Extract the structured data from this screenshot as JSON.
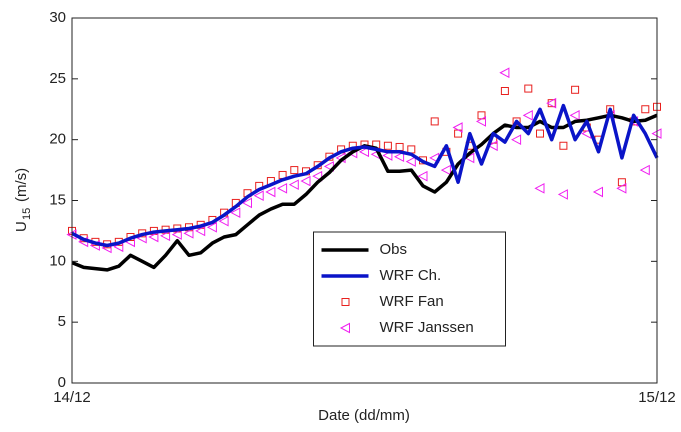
{
  "chart_data": {
    "type": "line",
    "x_label": "Date (dd/mm)",
    "y_label": "U",
    "y_label_subscript": "15",
    "y_label_unit": "(m/s)",
    "xlim": [
      0,
      1
    ],
    "xticks": [
      {
        "value": 0,
        "label": "14/12"
      },
      {
        "value": 1,
        "label": "15/12"
      }
    ],
    "ylim": [
      0,
      30
    ],
    "yticks": [
      0,
      5,
      10,
      15,
      20,
      25,
      30
    ],
    "grid": false,
    "legend_position": "lower center",
    "x": [
      0,
      0.02,
      0.04,
      0.06,
      0.08,
      0.1,
      0.12,
      0.14,
      0.16,
      0.18,
      0.2,
      0.22,
      0.24,
      0.26,
      0.28,
      0.3,
      0.32,
      0.34,
      0.36,
      0.38,
      0.4,
      0.42,
      0.44,
      0.46,
      0.48,
      0.5,
      0.52,
      0.54,
      0.56,
      0.58,
      0.6,
      0.62,
      0.64,
      0.66,
      0.68,
      0.7,
      0.72,
      0.74,
      0.76,
      0.78,
      0.8,
      0.82,
      0.84,
      0.86,
      0.88,
      0.9,
      0.92,
      0.94,
      0.96,
      0.98,
      1
    ],
    "series": [
      {
        "name": "Obs",
        "color": "#000000",
        "style": "line",
        "line_width": 3.5,
        "values": [
          9.9,
          9.5,
          9.4,
          9.3,
          9.6,
          10.5,
          10.0,
          9.5,
          10.5,
          11.7,
          10.5,
          10.7,
          11.5,
          12.0,
          12.2,
          13.0,
          13.8,
          14.3,
          14.7,
          14.7,
          15.5,
          16.5,
          17.3,
          18.3,
          19.0,
          19.5,
          19.3,
          17.4,
          17.4,
          17.5,
          16.2,
          15.7,
          16.5,
          18.0,
          18.9,
          19.6,
          20.5,
          21.2,
          21.0,
          21.0,
          21.5,
          21.0,
          21.0,
          21.5,
          21.6,
          21.8,
          22.0,
          21.8,
          21.5,
          21.6,
          22.0
        ]
      },
      {
        "name": "WRF Ch.",
        "color": "#0a14c8",
        "style": "line",
        "line_width": 3.5,
        "values": [
          12.3,
          11.8,
          11.5,
          11.3,
          11.5,
          11.9,
          12.2,
          12.4,
          12.5,
          12.6,
          12.7,
          12.9,
          13.2,
          13.8,
          14.5,
          15.3,
          15.9,
          16.3,
          16.7,
          17.0,
          17.2,
          17.8,
          18.5,
          19.0,
          19.3,
          19.4,
          19.2,
          19.0,
          19.0,
          18.8,
          18.2,
          17.8,
          19.5,
          16.5,
          20.5,
          18.0,
          20.5,
          19.8,
          21.5,
          20.5,
          22.5,
          20.0,
          22.8,
          20.0,
          21.5,
          19.0,
          22.5,
          18.5,
          22.0,
          20.5,
          18.5
        ]
      },
      {
        "name": "WRF Fan",
        "color": "#e8201e",
        "style": "marker",
        "marker": "square",
        "values": [
          12.5,
          11.9,
          11.6,
          11.4,
          11.6,
          12.0,
          12.3,
          12.5,
          12.6,
          12.7,
          12.8,
          13.0,
          13.4,
          14.0,
          14.8,
          15.6,
          16.2,
          16.6,
          17.1,
          17.5,
          17.4,
          17.9,
          18.6,
          19.2,
          19.5,
          19.6,
          19.6,
          19.5,
          19.4,
          19.2,
          18.3,
          21.5,
          19.0,
          20.5,
          19.5,
          22.0,
          20.0,
          24.0,
          21.5,
          24.2,
          20.5,
          23.0,
          19.5,
          24.1,
          21.0,
          20.0,
          22.5,
          16.5,
          21.5,
          22.5,
          22.7
        ]
      },
      {
        "name": "WRF Janssen",
        "color": "#f020f0",
        "style": "marker",
        "marker": "triangle-left",
        "values": [
          12.2,
          11.6,
          11.3,
          11.1,
          11.2,
          11.6,
          11.9,
          12.0,
          12.1,
          12.2,
          12.3,
          12.5,
          12.8,
          13.3,
          14.0,
          14.8,
          15.4,
          15.7,
          16.0,
          16.3,
          16.6,
          17.0,
          17.8,
          18.5,
          18.9,
          19.0,
          18.8,
          18.7,
          18.6,
          18.2,
          17.0,
          18.5,
          17.5,
          21.0,
          18.5,
          21.5,
          19.5,
          25.5,
          20.0,
          22.0,
          16.0,
          23.0,
          15.5,
          22.0,
          20.5,
          15.7,
          22.0,
          16.0,
          21.5,
          17.5,
          20.5
        ]
      }
    ]
  }
}
